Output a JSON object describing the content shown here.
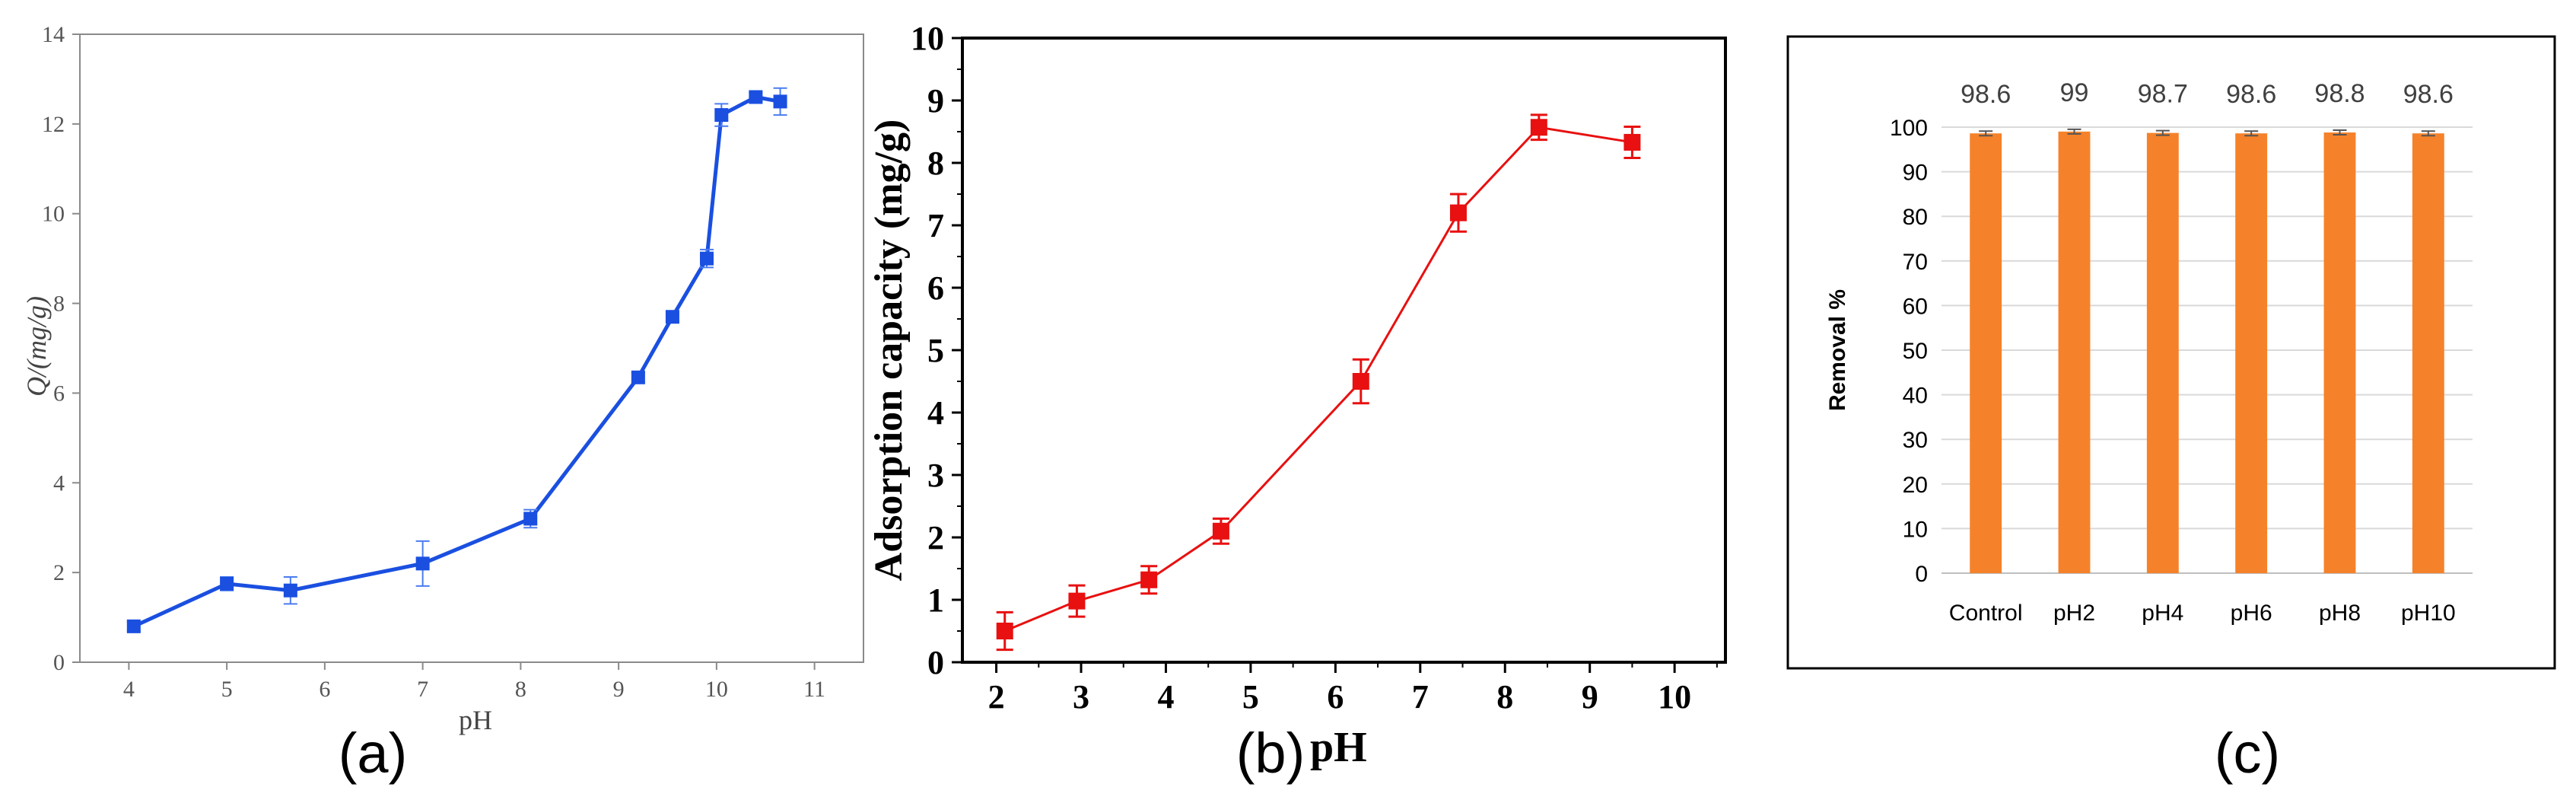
{
  "chart_data": [
    {
      "panel_label": "(a)",
      "type": "line",
      "xlabel": "pH",
      "ylabel": "Q/(mg/g)",
      "xlim": [
        3.5,
        11.5
      ],
      "ylim": [
        0,
        14
      ],
      "xticks": [
        4,
        5,
        6,
        7,
        8,
        9,
        10,
        11
      ],
      "yticks": [
        0,
        2,
        4,
        6,
        8,
        10,
        12,
        14
      ],
      "grid": false,
      "legend": "none",
      "colors": {
        "series": "#1a4fe0",
        "axis": "#8a8a8a",
        "tick_text": "#555555"
      },
      "series": [
        {
          "x": [
            4.05,
            5.0,
            5.65,
            7.0,
            8.1,
            9.2,
            9.55,
            9.9,
            10.05,
            10.4,
            10.65
          ],
          "y": [
            0.8,
            1.75,
            1.6,
            2.2,
            3.2,
            6.35,
            7.7,
            9.0,
            12.2,
            12.6,
            12.5
          ],
          "err": [
            0.1,
            0.15,
            0.3,
            0.5,
            0.2,
            0.1,
            0.1,
            0.2,
            0.25,
            0.1,
            0.3
          ]
        }
      ]
    },
    {
      "panel_label": "(b)",
      "type": "line",
      "xlabel": "pH",
      "ylabel": "Adsorption capacity (mg/g)",
      "xlim": [
        1.6,
        10.6
      ],
      "ylim": [
        0,
        10
      ],
      "xticks": [
        2,
        3,
        4,
        5,
        6,
        7,
        8,
        9,
        10
      ],
      "yticks": [
        0,
        1,
        2,
        3,
        4,
        5,
        6,
        7,
        8,
        9,
        10
      ],
      "grid": false,
      "legend": "none",
      "colors": {
        "series": "#e81010",
        "axis": "#000000",
        "tick_text": "#000000"
      },
      "series": [
        {
          "x": [
            2.1,
            2.95,
            3.8,
            4.65,
            6.3,
            7.45,
            8.4,
            9.5
          ],
          "y": [
            0.5,
            0.98,
            1.32,
            2.1,
            4.5,
            7.2,
            8.57,
            8.33
          ],
          "err": [
            0.3,
            0.25,
            0.22,
            0.2,
            0.35,
            0.3,
            0.2,
            0.25
          ]
        }
      ]
    },
    {
      "panel_label": "(c)",
      "type": "bar",
      "xlabel": "",
      "ylabel": "Removal %",
      "ylim": [
        0,
        100
      ],
      "yticks": [
        0,
        10,
        20,
        30,
        40,
        50,
        60,
        70,
        80,
        90,
        100
      ],
      "grid": true,
      "legend": "none",
      "colors": {
        "bar": "#f5822a",
        "error": "#555555",
        "grid": "#d9d9d9",
        "frame": "#000000",
        "text": "#000000",
        "data_label": "#404040"
      },
      "categories": [
        "Control",
        "pH2",
        "pH4",
        "pH6",
        "pH8",
        "pH10"
      ],
      "values": [
        98.6,
        99,
        98.7,
        98.6,
        98.8,
        98.6
      ],
      "data_labels": [
        "98.6",
        "99",
        "98.7",
        "98.6",
        "98.8",
        "98.6"
      ]
    }
  ]
}
